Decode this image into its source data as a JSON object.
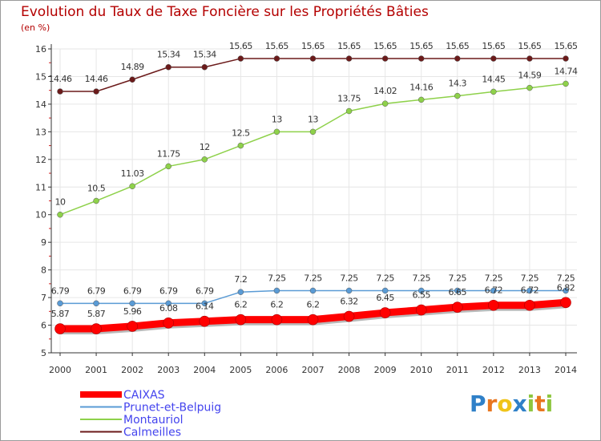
{
  "title": "Evolution du Taux de Taxe Foncière sur les Propriétés Bâties",
  "unit": "(en %)",
  "logo": {
    "p": "P",
    "r": "r",
    "o": "o",
    "x": "x",
    "i1": "i",
    "t": "t",
    "i2": "i"
  },
  "colors": {
    "title": "#b40000",
    "grid": "#e6e6e6",
    "axis": "#333333"
  },
  "chart_data": {
    "type": "line",
    "x": [
      "2000",
      "2001",
      "2002",
      "2003",
      "2004",
      "2005",
      "2006",
      "2007",
      "2008",
      "2009",
      "2010",
      "2011",
      "2012",
      "2013",
      "2014"
    ],
    "ylim": [
      5,
      16
    ],
    "yticks": [
      "5",
      "6",
      "7",
      "8",
      "9",
      "10",
      "11",
      "12",
      "13",
      "14",
      "15",
      "16"
    ],
    "grid": true,
    "legend": "bottom-left",
    "series": [
      {
        "name": "CAIXAS",
        "color": "#ff0000",
        "values": [
          5.87,
          5.87,
          5.96,
          6.08,
          6.14,
          6.2,
          6.2,
          6.2,
          6.32,
          6.45,
          6.55,
          6.65,
          6.72,
          6.72,
          6.82
        ],
        "labels": [
          "5.87",
          "5.87",
          "5.96",
          "6.08",
          "6.14",
          "6.2",
          "6.2",
          "6.2",
          "6.32",
          "6.45",
          "6.55",
          "6.65",
          "6.72",
          "6.72",
          "6.82"
        ]
      },
      {
        "name": "Prunet-et-Belpuig",
        "color": "#5a9bd5",
        "values": [
          6.79,
          6.79,
          6.79,
          6.79,
          6.79,
          7.2,
          7.25,
          7.25,
          7.25,
          7.25,
          7.25,
          7.25,
          7.25,
          7.25,
          7.25
        ],
        "labels": [
          "6.79",
          "6.79",
          "6.79",
          "6.79",
          "6.79",
          "7.2",
          "7.25",
          "7.25",
          "7.25",
          "7.25",
          "7.25",
          "7.25",
          "7.25",
          "7.25",
          "7.25"
        ]
      },
      {
        "name": "Montauriol",
        "color": "#8ed14a",
        "values": [
          10,
          10.5,
          11.03,
          11.75,
          12,
          12.5,
          13,
          13,
          13.75,
          14.02,
          14.16,
          14.3,
          14.45,
          14.59,
          14.74
        ],
        "labels": [
          "10",
          "10.5",
          "11.03",
          "11.75",
          "12",
          "12.5",
          "13",
          "13",
          "13.75",
          "14.02",
          "14.16",
          "14.3",
          "14.45",
          "14.59",
          "14.74"
        ]
      },
      {
        "name": "Calmeilles",
        "color": "#6b1a1a",
        "values": [
          14.46,
          14.46,
          14.89,
          15.34,
          15.34,
          15.65,
          15.65,
          15.65,
          15.65,
          15.65,
          15.65,
          15.65,
          15.65,
          15.65,
          15.65
        ],
        "labels": [
          "14.46",
          "14.46",
          "14.89",
          "15.34",
          "15.34",
          "15.65",
          "15.65",
          "15.65",
          "15.65",
          "15.65",
          "15.65",
          "15.65",
          "15.65",
          "15.65",
          "15.65"
        ]
      }
    ]
  }
}
